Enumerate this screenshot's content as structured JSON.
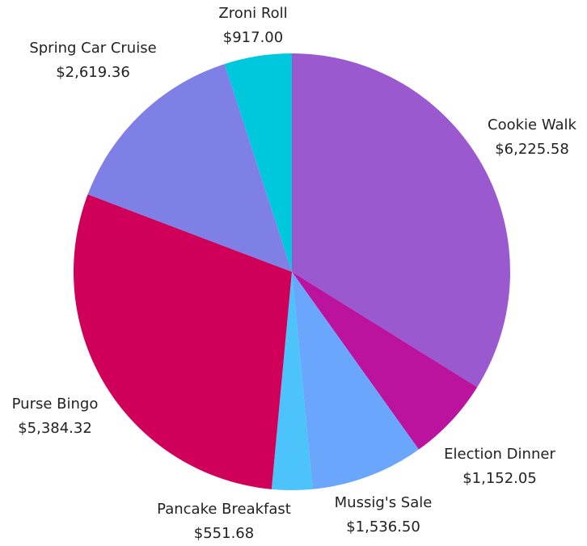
{
  "chart_data": {
    "type": "pie",
    "categories": [
      "Cookie Walk",
      "Election Dinner",
      "Mussig's Sale",
      "Pancake Breakfast",
      "Purse Bingo",
      "Spring Car Cruise",
      "Zroni Roll"
    ],
    "values": [
      6225.58,
      1152.05,
      1536.5,
      551.68,
      5384.32,
      2619.36,
      917.0
    ],
    "value_labels": [
      "$6,225.58",
      "$1,152.05",
      "$1,536.50",
      "$551.68",
      "$5,384.32",
      "$2,619.36",
      "$917.00"
    ],
    "colors": [
      "#9b59d0",
      "#bc139e",
      "#6aa6fb",
      "#4cc3fb",
      "#d0005a",
      "#7f80e6",
      "#00c8dc"
    ]
  }
}
